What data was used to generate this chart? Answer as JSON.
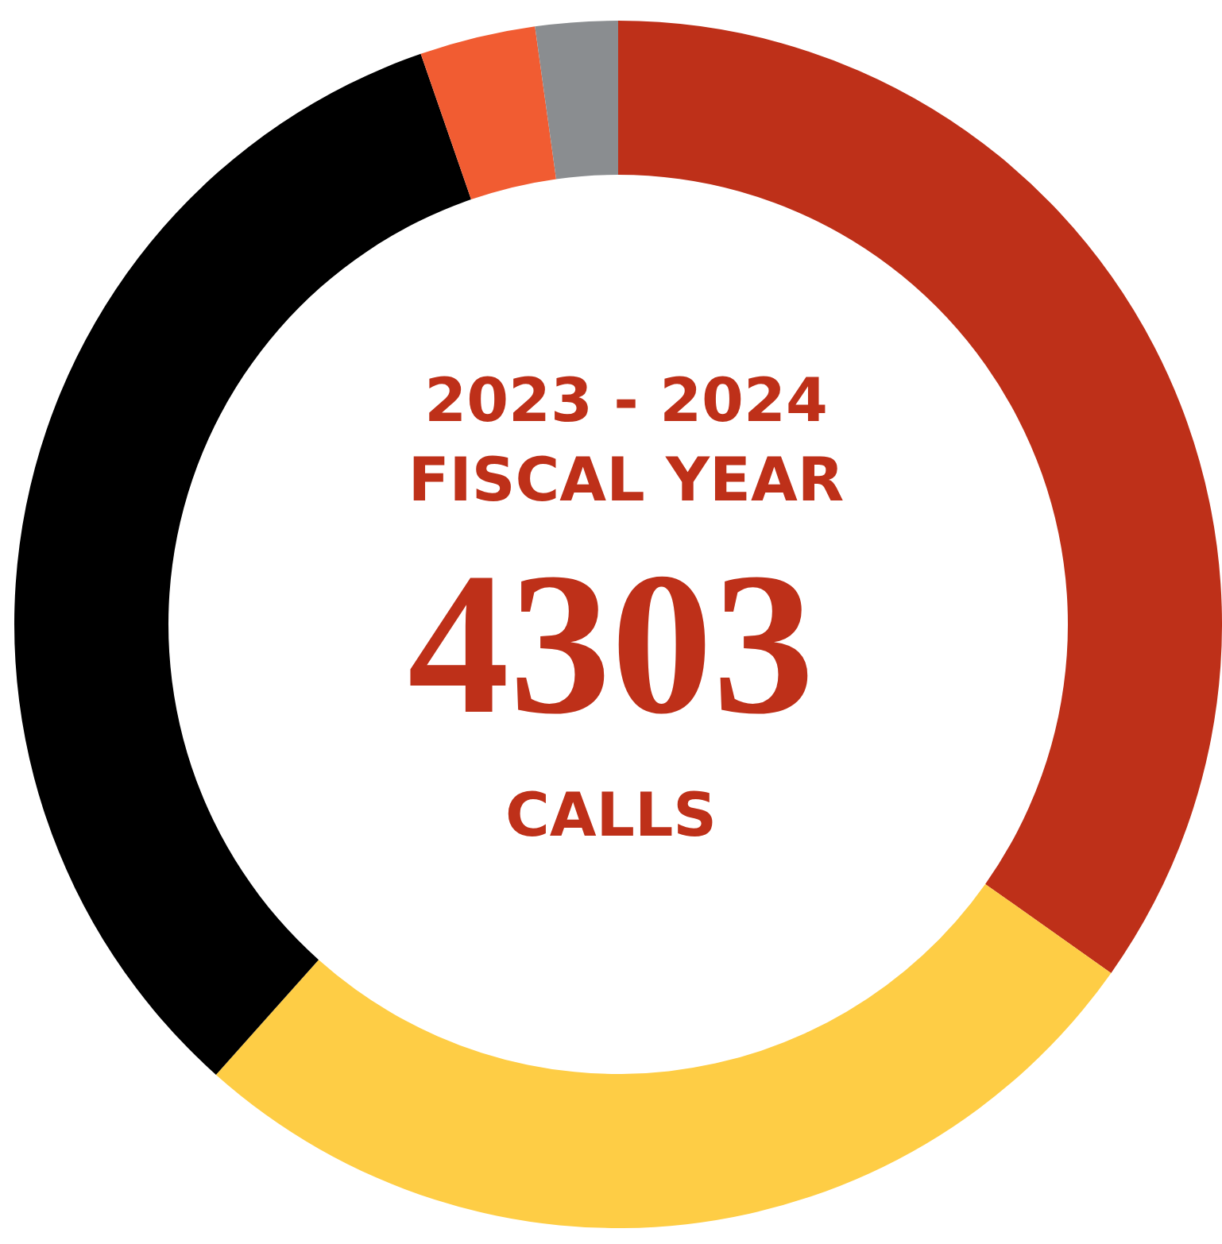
{
  "chart_data": {
    "type": "donut",
    "title": "2023 - 2024",
    "subtitle": "FISCAL YEAR",
    "annotations": [
      "4303",
      "CALLS"
    ],
    "categories": [
      null,
      null,
      null,
      null,
      null
    ],
    "values": [
      34.8,
      26.8,
      33.1,
      3.1,
      2.2
    ],
    "colors": [
      "#be3019",
      "#fecd45",
      "#000000",
      "#f15c32",
      "#8a8d90"
    ]
  }
}
